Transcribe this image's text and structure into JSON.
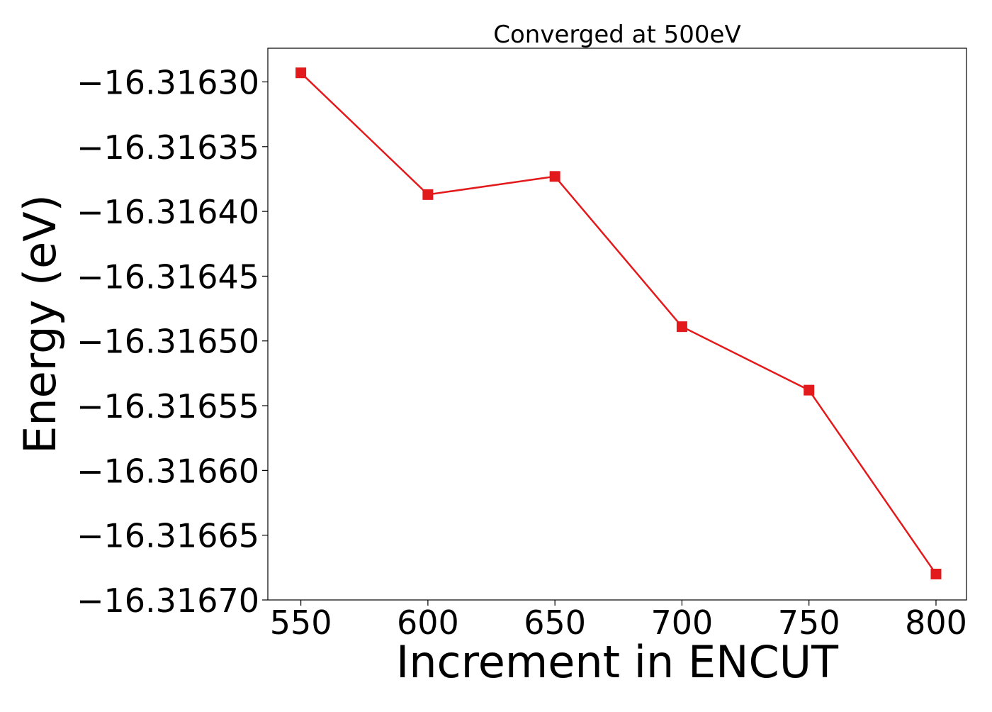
{
  "chart_data": {
    "type": "line",
    "title": "Converged at 500eV",
    "xlabel": "Increment in ENCUT",
    "ylabel": "Energy (eV)",
    "x": [
      550,
      600,
      650,
      700,
      750,
      800
    ],
    "series": [
      {
        "values": [
          -16.316293,
          -16.316387,
          -16.316373,
          -16.316489,
          -16.316538,
          -16.31668
        ],
        "color": "#e31a1c",
        "marker": "square"
      }
    ],
    "x_ticks": [
      550,
      600,
      650,
      700,
      750,
      800
    ],
    "x_tick_labels": [
      "550",
      "600",
      "650",
      "700",
      "750",
      "800"
    ],
    "y_ticks": [
      -16.3163,
      -16.31635,
      -16.3164,
      -16.31645,
      -16.3165,
      -16.31655,
      -16.3166,
      -16.31665,
      -16.3167
    ],
    "y_tick_labels": [
      "−16.31630",
      "−16.31635",
      "−16.31640",
      "−16.31645",
      "−16.31650",
      "−16.31655",
      "−16.31660",
      "−16.31665",
      "−16.31670"
    ],
    "xlim": [
      537,
      812
    ],
    "ylim": [
      -16.3167,
      -16.316274
    ],
    "grid": false,
    "legend": "none"
  }
}
